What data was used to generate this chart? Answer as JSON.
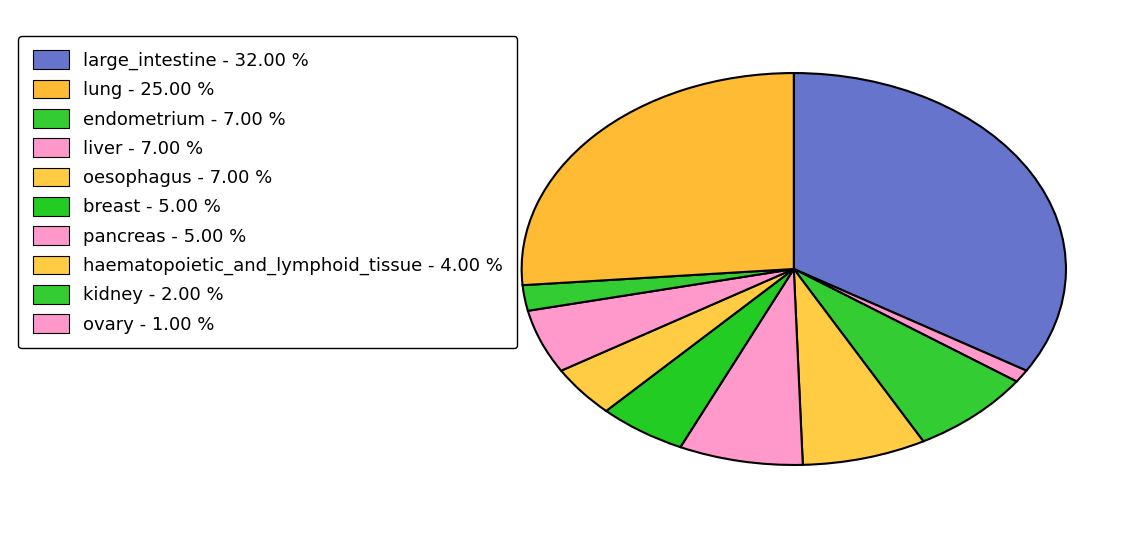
{
  "labels": [
    "large_intestine",
    "lung",
    "endometrium",
    "liver",
    "oesophagus",
    "breast",
    "pancreas",
    "haematopoietic_and_lymphoid_tissue",
    "kidney",
    "ovary"
  ],
  "values": [
    32,
    25,
    7,
    7,
    7,
    5,
    5,
    4,
    2,
    1
  ],
  "colors": [
    "#6674cc",
    "#ffbb33",
    "#33cc33",
    "#ff99cc",
    "#ffcc44",
    "#22cc22",
    "#ff99cc",
    "#ffcc44",
    "#33cc33",
    "#ff99cc"
  ],
  "legend_labels": [
    "large_intestine - 32.00 %",
    "lung - 25.00 %",
    "endometrium - 7.00 %",
    "liver - 7.00 %",
    "oesophagus - 7.00 %",
    "breast - 5.00 %",
    "pancreas - 5.00 %",
    "haematopoietic_and_lymphoid_tissue - 4.00 %",
    "kidney - 2.00 %",
    "ovary - 1.00 %"
  ],
  "legend_colors": [
    "#6674cc",
    "#ffbb33",
    "#33cc33",
    "#ff99cc",
    "#ffcc44",
    "#22cc22",
    "#ff99cc",
    "#ffcc44",
    "#33cc33",
    "#ff99cc"
  ],
  "startangle": 90,
  "background_color": "#ffffff",
  "legend_fontsize": 13,
  "figsize": [
    11.34,
    5.38
  ]
}
